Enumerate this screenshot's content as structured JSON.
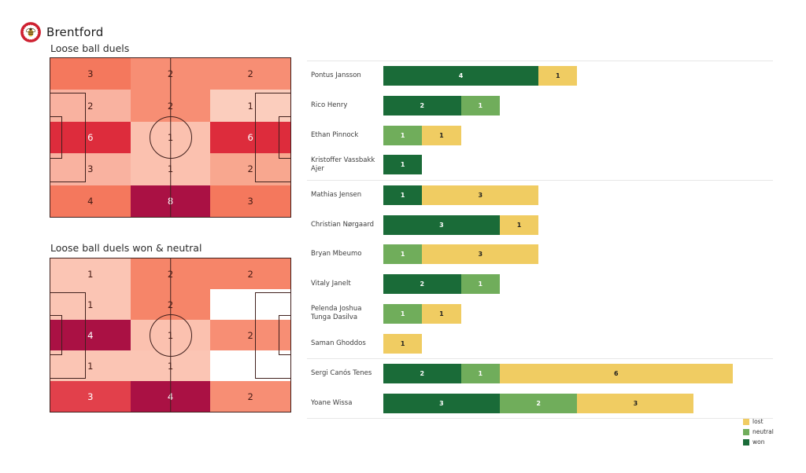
{
  "header": {
    "team": "Brentford"
  },
  "heatmap1": {
    "title": "Loose ball duels",
    "cells": [
      {
        "v": "3",
        "bg": "#f4785d",
        "fg": "#461a14"
      },
      {
        "v": "2",
        "bg": "#f78e74",
        "fg": "#461a14"
      },
      {
        "v": "2",
        "bg": "#f78e74",
        "fg": "#461a14"
      },
      {
        "v": "2",
        "bg": "#f9b2a0",
        "fg": "#461a14"
      },
      {
        "v": "2",
        "bg": "#f78e74",
        "fg": "#461a14"
      },
      {
        "v": "1",
        "bg": "#fbcdbd",
        "fg": "#461a14"
      },
      {
        "v": "6",
        "bg": "#dd2c3c",
        "fg": "#ffffff"
      },
      {
        "v": "1",
        "bg": "#fbc1af",
        "fg": "#461a14"
      },
      {
        "v": "6",
        "bg": "#dd2c3c",
        "fg": "#ffffff"
      },
      {
        "v": "3",
        "bg": "#f9b2a0",
        "fg": "#461a14"
      },
      {
        "v": "1",
        "bg": "#fbc1af",
        "fg": "#461a14"
      },
      {
        "v": "2",
        "bg": "#f8a78f",
        "fg": "#461a14"
      },
      {
        "v": "4",
        "bg": "#f4785d",
        "fg": "#461a14"
      },
      {
        "v": "8",
        "bg": "#aa1144",
        "fg": "#ffffff"
      },
      {
        "v": "3",
        "bg": "#f4785d",
        "fg": "#461a14"
      }
    ]
  },
  "heatmap2": {
    "title": "Loose ball duels won & neutral",
    "cells": [
      {
        "v": "1",
        "bg": "#fbc5b4",
        "fg": "#461a14"
      },
      {
        "v": "2",
        "bg": "#f68569",
        "fg": "#461a14"
      },
      {
        "v": "2",
        "bg": "#f68569",
        "fg": "#461a14"
      },
      {
        "v": "1",
        "bg": "#fbc5b4",
        "fg": "#461a14"
      },
      {
        "v": "2",
        "bg": "#f68569",
        "fg": "#461a14"
      },
      {
        "v": "",
        "bg": "#ffffff",
        "fg": "#461a14"
      },
      {
        "v": "4",
        "bg": "#aa1144",
        "fg": "#ffffff"
      },
      {
        "v": "1",
        "bg": "#fbc1af",
        "fg": "#461a14"
      },
      {
        "v": "2",
        "bg": "#f78e74",
        "fg": "#461a14"
      },
      {
        "v": "1",
        "bg": "#fbc5b4",
        "fg": "#461a14"
      },
      {
        "v": "1",
        "bg": "#fbc5b4",
        "fg": "#461a14"
      },
      {
        "v": "",
        "bg": "#ffffff",
        "fg": "#461a14"
      },
      {
        "v": "3",
        "bg": "#e2404b",
        "fg": "#ffffff"
      },
      {
        "v": "4",
        "bg": "#aa1144",
        "fg": "#ffffff"
      },
      {
        "v": "2",
        "bg": "#f78e74",
        "fg": "#461a14"
      }
    ]
  },
  "duels_chart": {
    "colors": {
      "won": "#1a6b38",
      "neutral": "#70ad5b",
      "lost": "#f0cc62"
    },
    "players": [
      {
        "name": "Pontus Jansson",
        "group": 1,
        "won": 4,
        "neutral": 0,
        "lost": 1
      },
      {
        "name": "Rico Henry",
        "group": 1,
        "won": 2,
        "neutral": 1,
        "lost": 0
      },
      {
        "name": "Ethan Pinnock",
        "group": 1,
        "won": 0,
        "neutral": 1,
        "lost": 1
      },
      {
        "name": "Kristoffer Vassbakk Ajer",
        "group": 1,
        "won": 1,
        "neutral": 0,
        "lost": 0
      },
      {
        "name": "Mathias Jensen",
        "group": 2,
        "won": 1,
        "neutral": 0,
        "lost": 3
      },
      {
        "name": "Christian Nørgaard",
        "group": 2,
        "won": 3,
        "neutral": 0,
        "lost": 1
      },
      {
        "name": "Bryan Mbeumo",
        "group": 2,
        "won": 0,
        "neutral": 1,
        "lost": 3
      },
      {
        "name": "Vitaly Janelt",
        "group": 2,
        "won": 2,
        "neutral": 1,
        "lost": 0
      },
      {
        "name": "Pelenda Joshua Tunga Dasilva",
        "group": 2,
        "won": 0,
        "neutral": 1,
        "lost": 1
      },
      {
        "name": "Saman Ghoddos",
        "group": 2,
        "won": 0,
        "neutral": 0,
        "lost": 1
      },
      {
        "name": "Sergi Canós Tenes",
        "group": 3,
        "won": 2,
        "neutral": 1,
        "lost": 6
      },
      {
        "name": "Yoane Wissa",
        "group": 3,
        "won": 3,
        "neutral": 2,
        "lost": 3
      }
    ],
    "legend": [
      {
        "label": "lost",
        "color": "#f0cc62"
      },
      {
        "label": "neutral",
        "color": "#70ad5b"
      },
      {
        "label": "won",
        "color": "#1a6b38"
      }
    ]
  },
  "chart_data": [
    {
      "type": "heatmap",
      "title": "Loose ball duels",
      "layout": "soccer pitch, 3 columns x 5 rows, attacking left-to-right",
      "rows": [
        [
          3,
          2,
          2
        ],
        [
          2,
          2,
          1
        ],
        [
          6,
          1,
          6
        ],
        [
          3,
          1,
          2
        ],
        [
          4,
          8,
          3
        ]
      ]
    },
    {
      "type": "heatmap",
      "title": "Loose ball duels won & neutral",
      "layout": "soccer pitch, 3 columns x 5 rows, blank cells = no duels",
      "rows": [
        [
          1,
          2,
          2
        ],
        [
          1,
          2,
          null
        ],
        [
          4,
          1,
          2
        ],
        [
          1,
          1,
          null
        ],
        [
          3,
          4,
          2
        ]
      ]
    },
    {
      "type": "bar",
      "subtype": "horizontal-stacked",
      "categories": [
        "Pontus Jansson",
        "Rico Henry",
        "Ethan Pinnock",
        "Kristoffer Vassbakk Ajer",
        "Mathias Jensen",
        "Christian Nørgaard",
        "Bryan Mbeumo",
        "Vitaly Janelt",
        "Pelenda Joshua Tunga Dasilva",
        "Saman Ghoddos",
        "Sergi Canós Tenes",
        "Yoane Wissa"
      ],
      "series": [
        {
          "name": "won",
          "values": [
            4,
            2,
            0,
            1,
            1,
            3,
            0,
            2,
            0,
            0,
            2,
            3
          ]
        },
        {
          "name": "neutral",
          "values": [
            0,
            1,
            1,
            0,
            0,
            0,
            1,
            1,
            1,
            0,
            1,
            2
          ]
        },
        {
          "name": "lost",
          "values": [
            1,
            0,
            1,
            0,
            3,
            1,
            3,
            0,
            1,
            1,
            6,
            3
          ]
        }
      ],
      "group_separators_after": [
        "Kristoffer Vassbakk Ajer",
        "Saman Ghoddos",
        "Yoane Wissa"
      ],
      "legend_position": "bottom-right",
      "legend_order": [
        "lost",
        "neutral",
        "won"
      ]
    }
  ]
}
